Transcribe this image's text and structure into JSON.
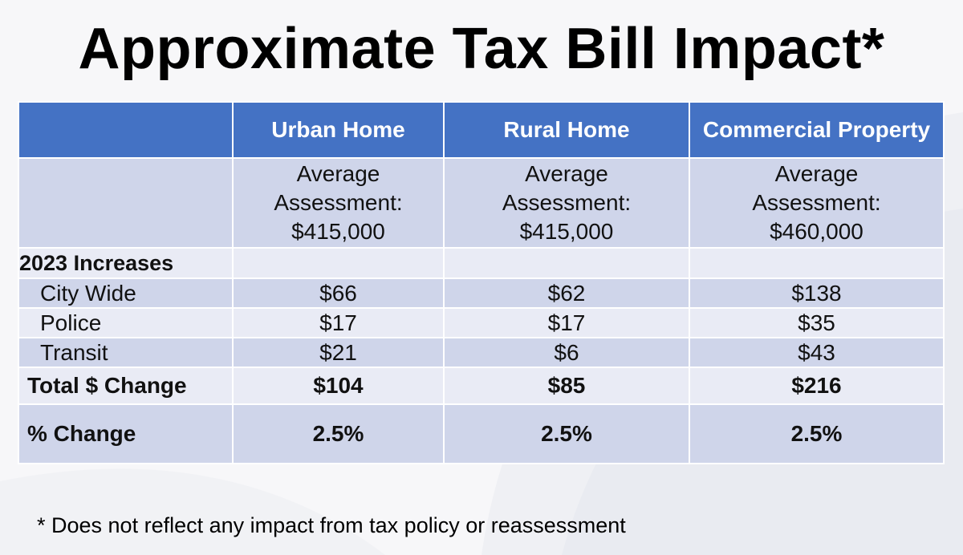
{
  "slide": {
    "title": "Approximate Tax Bill Impact*",
    "footnote": "* Does not reflect any impact from tax policy or reassessment"
  },
  "table": {
    "headers": [
      "",
      "Urban Home",
      "Rural Home",
      "Commercial Property"
    ],
    "assessment": {
      "line1": "Average",
      "line2": "Assessment:",
      "values": [
        "$415,000",
        "$415,000",
        "$460,000"
      ]
    },
    "section_label": "2023 Increases",
    "items": [
      {
        "label": "City Wide",
        "values": [
          "$66",
          "$62",
          "$138"
        ]
      },
      {
        "label": "Police",
        "values": [
          "$17",
          "$17",
          "$35"
        ]
      },
      {
        "label": "Transit",
        "values": [
          "$21",
          "$6",
          "$43"
        ]
      }
    ],
    "total": {
      "label": "Total $ Change",
      "values": [
        "$104",
        "$85",
        "$216"
      ]
    },
    "percent": {
      "label": "% Change",
      "values": [
        "2.5%",
        "2.5%",
        "2.5%"
      ]
    }
  },
  "colors": {
    "header_bg": "#4472c4",
    "row_dark": "#cfd5ea",
    "row_light": "#e9ebf5"
  }
}
